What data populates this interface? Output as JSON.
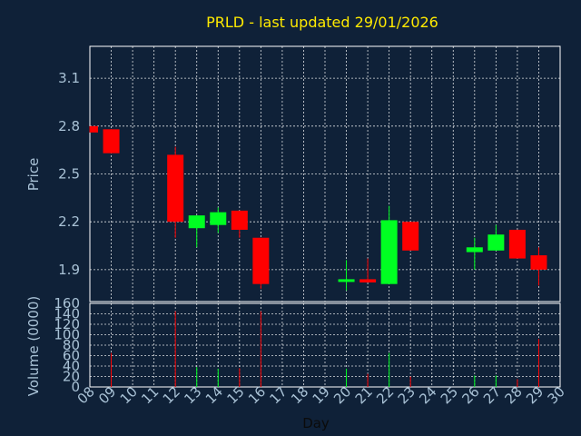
{
  "title": "PRLD - last updated 29/01/2026",
  "colors": {
    "background": "#0f2138",
    "up": "#00ff22",
    "down": "#ff0000",
    "title": "#ffea00",
    "text": "#a9c2d6",
    "grid": "#ffffff"
  },
  "chart_data": {
    "type": "candlestick",
    "title": "PRLD - last updated 29/01/2026",
    "xlabel": "Day",
    "x_ticks": [
      "08",
      "09",
      "10",
      "11",
      "12",
      "13",
      "14",
      "15",
      "16",
      "17",
      "18",
      "19",
      "20",
      "21",
      "22",
      "23",
      "24",
      "25",
      "26",
      "27",
      "28",
      "29",
      "30"
    ],
    "price": {
      "ylabel": "Price",
      "ylim": [
        1.7,
        3.3
      ],
      "ticks": [
        "1.9",
        "2.2",
        "2.5",
        "2.8",
        "3.1"
      ],
      "candles": [
        {
          "day": 8,
          "open": 2.8,
          "close": 2.76,
          "high": 2.8,
          "low": 2.76
        },
        {
          "day": 9,
          "open": 2.78,
          "close": 2.63,
          "high": 2.78,
          "low": 2.63
        },
        {
          "day": 12,
          "open": 2.62,
          "close": 2.2,
          "high": 2.67,
          "low": 2.1
        },
        {
          "day": 13,
          "open": 2.16,
          "close": 2.24,
          "high": 2.24,
          "low": 2.04
        },
        {
          "day": 14,
          "open": 2.18,
          "close": 2.26,
          "high": 2.29,
          "low": 2.13
        },
        {
          "day": 15,
          "open": 2.27,
          "close": 2.15,
          "high": 2.27,
          "low": 2.1
        },
        {
          "day": 16,
          "open": 2.1,
          "close": 1.81,
          "high": 2.1,
          "low": 1.78
        },
        {
          "day": 20,
          "open": 1.83,
          "close": 1.84,
          "high": 1.96,
          "low": 1.77
        },
        {
          "day": 21,
          "open": 1.84,
          "close": 1.82,
          "high": 1.97,
          "low": 1.82
        },
        {
          "day": 22,
          "open": 1.81,
          "close": 2.21,
          "high": 2.3,
          "low": 1.81
        },
        {
          "day": 23,
          "open": 2.2,
          "close": 2.02,
          "high": 2.2,
          "low": 2.02
        },
        {
          "day": 26,
          "open": 2.01,
          "close": 2.04,
          "high": 2.1,
          "low": 1.9
        },
        {
          "day": 27,
          "open": 2.02,
          "close": 2.12,
          "high": 2.18,
          "low": 2.02
        },
        {
          "day": 28,
          "open": 2.15,
          "close": 1.97,
          "high": 2.15,
          "low": 1.97
        },
        {
          "day": 29,
          "open": 1.99,
          "close": 1.9,
          "high": 2.04,
          "low": 1.8
        }
      ]
    },
    "volume": {
      "ylabel": "Volume (0000)",
      "ylim": [
        0,
        160
      ],
      "ticks": [
        "0",
        "20",
        "40",
        "60",
        "80",
        "100",
        "120",
        "140",
        "160"
      ],
      "bars": [
        {
          "day": 9,
          "value": 65,
          "dir": "down"
        },
        {
          "day": 12,
          "value": 145,
          "dir": "down"
        },
        {
          "day": 13,
          "value": 38,
          "dir": "up"
        },
        {
          "day": 14,
          "value": 35,
          "dir": "up"
        },
        {
          "day": 15,
          "value": 36,
          "dir": "down"
        },
        {
          "day": 16,
          "value": 145,
          "dir": "down"
        },
        {
          "day": 20,
          "value": 35,
          "dir": "up"
        },
        {
          "day": 21,
          "value": 25,
          "dir": "down"
        },
        {
          "day": 22,
          "value": 65,
          "dir": "up"
        },
        {
          "day": 23,
          "value": 20,
          "dir": "down"
        },
        {
          "day": 26,
          "value": 22,
          "dir": "up"
        },
        {
          "day": 27,
          "value": 22,
          "dir": "up"
        },
        {
          "day": 28,
          "value": 15,
          "dir": "down"
        },
        {
          "day": 29,
          "value": 92,
          "dir": "down"
        }
      ]
    },
    "grid": true
  }
}
